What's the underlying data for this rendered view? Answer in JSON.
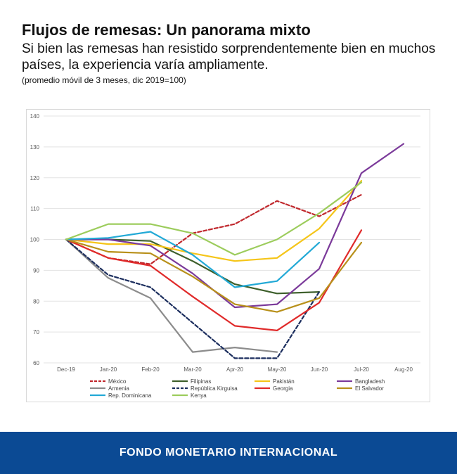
{
  "header": {
    "title": "Flujos de remesas: Un panorama mixto",
    "subtitle": "Si bien las remesas han resistido sorprendentemente bien en muchos países, la experiencia varía ampliamente.",
    "note": "(promedio móvil de 3 meses, dic 2019=100)"
  },
  "footer": {
    "label": "FONDO MONETARIO INTERNACIONAL"
  },
  "chart_data": {
    "type": "line",
    "categories": [
      "Dec-19",
      "Jan-20",
      "Feb-20",
      "Mar-20",
      "Apr-20",
      "May-20",
      "Jun-20",
      "Jul-20",
      "Aug-20"
    ],
    "ylim": [
      60,
      140
    ],
    "yticks": [
      60,
      70,
      80,
      90,
      100,
      110,
      120,
      130,
      140
    ],
    "grid": true,
    "legend_position": "bottom",
    "series": [
      {
        "name": "México",
        "color": "#c0282d",
        "dashed": true,
        "values": [
          100,
          94,
          92,
          102,
          105,
          112.5,
          107.5,
          114.5,
          null
        ]
      },
      {
        "name": "Filipinas",
        "color": "#3d5f2b",
        "dashed": false,
        "values": [
          100,
          100,
          99.5,
          93,
          85.5,
          82.5,
          83,
          null,
          null
        ]
      },
      {
        "name": "Pakistán",
        "color": "#f5c518",
        "dashed": false,
        "values": [
          100,
          98.5,
          98.5,
          95.5,
          93,
          94,
          103.5,
          119,
          null
        ]
      },
      {
        "name": "Bangladesh",
        "color": "#7b3a9a",
        "dashed": false,
        "values": [
          100,
          100,
          98,
          89,
          78,
          79,
          90.5,
          121.5,
          131
        ]
      },
      {
        "name": "Armenia",
        "color": "#8c8c8c",
        "dashed": false,
        "values": [
          100,
          87.5,
          81,
          63.5,
          65,
          63.5,
          null,
          null,
          null
        ]
      },
      {
        "name": "República Kirguisa",
        "color": "#1c2e5e",
        "dashed": true,
        "values": [
          100,
          88.5,
          84.5,
          73,
          61.5,
          61.5,
          83,
          null,
          null
        ]
      },
      {
        "name": "Georgia",
        "color": "#e02a2a",
        "dashed": false,
        "values": [
          100,
          94,
          91.5,
          81.5,
          72,
          70.5,
          79.5,
          103,
          null
        ]
      },
      {
        "name": "El Salvador",
        "color": "#b8901a",
        "dashed": false,
        "values": [
          100,
          96,
          95.5,
          88,
          79,
          76.5,
          81,
          99,
          null
        ]
      },
      {
        "name": "Rep. Dominicana",
        "color": "#22a9d6",
        "dashed": false,
        "values": [
          100,
          100.5,
          102.5,
          95,
          84.5,
          86.5,
          99,
          null,
          null
        ]
      },
      {
        "name": "Kenya",
        "color": "#9ccc5c",
        "dashed": false,
        "values": [
          100,
          105,
          105,
          102,
          95,
          100,
          108.5,
          118.5,
          null
        ]
      }
    ]
  }
}
